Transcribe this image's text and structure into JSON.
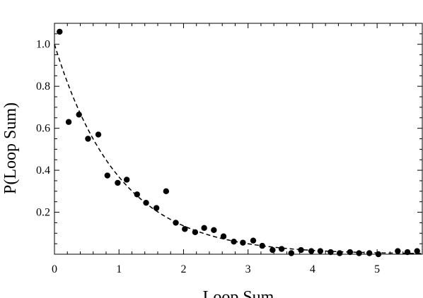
{
  "chart_data": {
    "type": "scatter",
    "title": "",
    "xlabel": "Loop Sum",
    "ylabel": "P(Loop Sum)",
    "xlim": [
      0,
      5.7
    ],
    "ylim": [
      0,
      1.1
    ],
    "xticks": [
      0,
      1,
      2,
      3,
      4,
      5
    ],
    "xtick_labels": [
      "0",
      "1",
      "2",
      "3",
      "4",
      "5"
    ],
    "yticks": [
      0.2,
      0.4,
      0.6,
      0.8,
      1.0
    ],
    "ytick_labels": [
      "0.2",
      "0.4",
      "0.6",
      "0.8",
      "1.0"
    ],
    "grid": false,
    "series": [
      {
        "kind": "points",
        "color": "#000000",
        "x": [
          0.08,
          0.22,
          0.38,
          0.52,
          0.68,
          0.82,
          0.98,
          1.12,
          1.28,
          1.42,
          1.58,
          1.73,
          1.88,
          2.02,
          2.18,
          2.32,
          2.47,
          2.62,
          2.78,
          2.92,
          3.08,
          3.22,
          3.38,
          3.52,
          3.67,
          3.82,
          3.98,
          4.12,
          4.28,
          4.42,
          4.58,
          4.72,
          4.88,
          5.02,
          5.32,
          5.47,
          5.62
        ],
        "y": [
          1.06,
          0.63,
          0.665,
          0.55,
          0.57,
          0.375,
          0.34,
          0.355,
          0.285,
          0.245,
          0.22,
          0.3,
          0.15,
          0.12,
          0.105,
          0.125,
          0.115,
          0.085,
          0.06,
          0.055,
          0.065,
          0.04,
          0.02,
          0.025,
          0.005,
          0.02,
          0.015,
          0.015,
          0.01,
          0.005,
          0.01,
          0.005,
          0.005,
          0.0,
          0.015,
          0.01,
          0.015
        ]
      },
      {
        "kind": "fit-curve",
        "style": "dashed",
        "color": "#000000",
        "function": "exp(-x)"
      }
    ]
  }
}
